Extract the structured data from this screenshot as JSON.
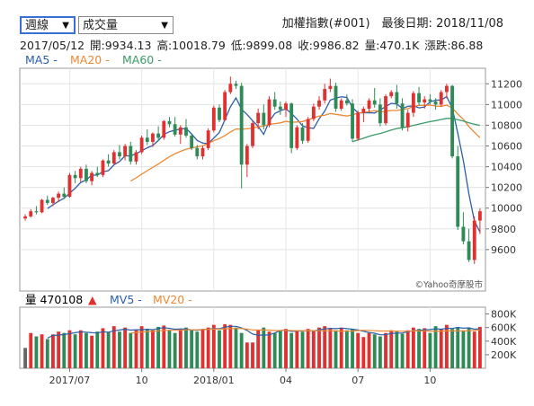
{
  "controls": {
    "period_select": "週線",
    "indicator_select": "成交量"
  },
  "header": {
    "title": "加權指數(#001)　最後日期: 2018/11/08",
    "date": "2017/05/12",
    "open_label": "開:9934.13",
    "high_label": "高:10018.79",
    "low_label": "低:9899.08",
    "close_label": "收:9986.82",
    "volume_label": "量:470.1K",
    "change_label": "漲跌:86.88"
  },
  "colors": {
    "up": "#e03030",
    "down": "#2e8b57",
    "ma5": "#2b5fa8",
    "ma20": "#ee8833",
    "ma60": "#3c9a6a",
    "mv5": "#2b5fa8",
    "mv20": "#ee8833"
  },
  "watermark": "©Yahoo奇摩股市",
  "chart_data": {
    "type": "candlestick",
    "legend_price": [
      "MA5 -",
      "MA20 -",
      "MA60 -"
    ],
    "legend_volume": [
      "量 470108",
      "MV5 -",
      "MV20 -"
    ],
    "volume_trend_mark": "▲",
    "price_ylim": [
      9200,
      11350
    ],
    "price_ticks": [
      "11200",
      "11000",
      "10800",
      "10600",
      "10400",
      "10200",
      "10000",
      "9800",
      "9600"
    ],
    "volume_ylim": [
      0,
      900000
    ],
    "volume_ticks": [
      "800K",
      "600K",
      "400K",
      "200K"
    ],
    "x_labels": [
      {
        "label": "2017/07",
        "index": 8
      },
      {
        "label": "10",
        "index": 21
      },
      {
        "label": "2018/01",
        "index": 34
      },
      {
        "label": "04",
        "index": 47
      },
      {
        "label": "07",
        "index": 60
      },
      {
        "label": "10",
        "index": 73
      }
    ],
    "candles": [
      [
        9900,
        9940,
        9880,
        9920
      ],
      [
        9920,
        9990,
        9910,
        9970
      ],
      [
        9970,
        10020,
        9940,
        9960
      ],
      [
        9960,
        10090,
        9950,
        10080
      ],
      [
        10080,
        10120,
        10030,
        10050
      ],
      [
        10050,
        10110,
        10020,
        10100
      ],
      [
        10100,
        10160,
        10060,
        10140
      ],
      [
        10140,
        10200,
        10090,
        10110
      ],
      [
        10110,
        10340,
        10100,
        10320
      ],
      [
        10320,
        10360,
        10240,
        10290
      ],
      [
        10290,
        10400,
        10250,
        10380
      ],
      [
        10380,
        10420,
        10240,
        10260
      ],
      [
        10260,
        10360,
        10220,
        10340
      ],
      [
        10340,
        10400,
        10300,
        10320
      ],
      [
        10320,
        10470,
        10300,
        10460
      ],
      [
        10460,
        10520,
        10400,
        10430
      ],
      [
        10430,
        10560,
        10420,
        10540
      ],
      [
        10540,
        10610,
        10470,
        10500
      ],
      [
        10500,
        10620,
        10460,
        10600
      ],
      [
        10600,
        10640,
        10420,
        10450
      ],
      [
        10450,
        10560,
        10420,
        10540
      ],
      [
        10540,
        10700,
        10520,
        10680
      ],
      [
        10680,
        10760,
        10610,
        10640
      ],
      [
        10640,
        10730,
        10590,
        10720
      ],
      [
        10720,
        10790,
        10650,
        10680
      ],
      [
        10680,
        10850,
        10660,
        10840
      ],
      [
        10840,
        10880,
        10780,
        10810
      ],
      [
        10810,
        10880,
        10690,
        10710
      ],
      [
        10710,
        10800,
        10620,
        10780
      ],
      [
        10780,
        10860,
        10680,
        10700
      ],
      [
        10700,
        10720,
        10560,
        10580
      ],
      [
        10580,
        10610,
        10470,
        10500
      ],
      [
        10500,
        10600,
        10470,
        10580
      ],
      [
        10580,
        10770,
        10560,
        10750
      ],
      [
        10750,
        10990,
        10730,
        10970
      ],
      [
        10970,
        11000,
        10830,
        10850
      ],
      [
        10850,
        11140,
        10840,
        11120
      ],
      [
        11120,
        11270,
        11100,
        11200
      ],
      [
        11200,
        11230,
        11150,
        11180
      ],
      [
        11180,
        11210,
        10190,
        10420
      ],
      [
        10420,
        10620,
        10300,
        10600
      ],
      [
        10600,
        10840,
        10580,
        10820
      ],
      [
        10820,
        10960,
        10760,
        10920
      ],
      [
        10920,
        11000,
        10760,
        10800
      ],
      [
        10800,
        11080,
        10780,
        11050
      ],
      [
        11050,
        11120,
        10950,
        10980
      ],
      [
        10980,
        11030,
        10900,
        10950
      ],
      [
        10950,
        11030,
        10880,
        11010
      ],
      [
        11010,
        11020,
        10530,
        10580
      ],
      [
        10580,
        10800,
        10560,
        10780
      ],
      [
        10780,
        10820,
        10620,
        10650
      ],
      [
        10650,
        10880,
        10630,
        10860
      ],
      [
        10860,
        11010,
        10840,
        10980
      ],
      [
        10980,
        11080,
        10950,
        11040
      ],
      [
        11040,
        11200,
        11010,
        11150
      ],
      [
        11150,
        11250,
        11120,
        11180
      ],
      [
        11180,
        11210,
        10930,
        10960
      ],
      [
        10960,
        11060,
        10940,
        11040
      ],
      [
        11040,
        11100,
        10990,
        11010
      ],
      [
        11010,
        11050,
        10640,
        10670
      ],
      [
        10670,
        10940,
        10650,
        10920
      ],
      [
        10920,
        10980,
        10830,
        10960
      ],
      [
        10960,
        11060,
        10930,
        11040
      ],
      [
        11040,
        11160,
        10970,
        11000
      ],
      [
        11000,
        11060,
        10790,
        10820
      ],
      [
        10820,
        11100,
        10800,
        11080
      ],
      [
        11080,
        11140,
        11060,
        11120
      ],
      [
        11120,
        11190,
        10960,
        11010
      ],
      [
        11010,
        11060,
        10750,
        10780
      ],
      [
        10780,
        10950,
        10740,
        10920
      ],
      [
        10920,
        11130,
        10880,
        11110
      ],
      [
        11110,
        11170,
        10990,
        11020
      ],
      [
        11020,
        11080,
        10960,
        11050
      ],
      [
        11050,
        11100,
        11000,
        11030
      ],
      [
        11030,
        11060,
        10950,
        11000
      ],
      [
        11000,
        11140,
        10980,
        11120
      ],
      [
        11120,
        11200,
        11060,
        11180
      ],
      [
        11180,
        11190,
        10480,
        10500
      ],
      [
        10500,
        10600,
        9790,
        9820
      ],
      [
        9820,
        9960,
        9650,
        9680
      ],
      [
        9680,
        9800,
        9480,
        9500
      ],
      [
        9500,
        9920,
        9460,
        9880
      ],
      [
        9880,
        10000,
        9750,
        9970
      ]
    ],
    "volumes": [
      300000,
      520000,
      470000,
      500000,
      430000,
      500000,
      540000,
      520000,
      560000,
      500000,
      560000,
      520000,
      480000,
      540000,
      590000,
      530000,
      620000,
      540000,
      600000,
      520000,
      560000,
      620000,
      580000,
      560000,
      610000,
      630000,
      560000,
      520000,
      580000,
      600000,
      560000,
      540000,
      580000,
      600000,
      640000,
      560000,
      650000,
      640000,
      600000,
      520000,
      380000,
      380000,
      560000,
      600000,
      540000,
      520000,
      560000,
      580000,
      520000,
      560000,
      540000,
      580000,
      560000,
      600000,
      620000,
      580000,
      560000,
      600000,
      560000,
      580000,
      520000,
      460000,
      520000,
      500000,
      470000,
      520000,
      560000,
      540000,
      510000,
      560000,
      600000,
      580000,
      590000,
      520000,
      620000,
      570000,
      640000,
      580000,
      600000,
      560000,
      600000,
      540000,
      610000
    ]
  }
}
